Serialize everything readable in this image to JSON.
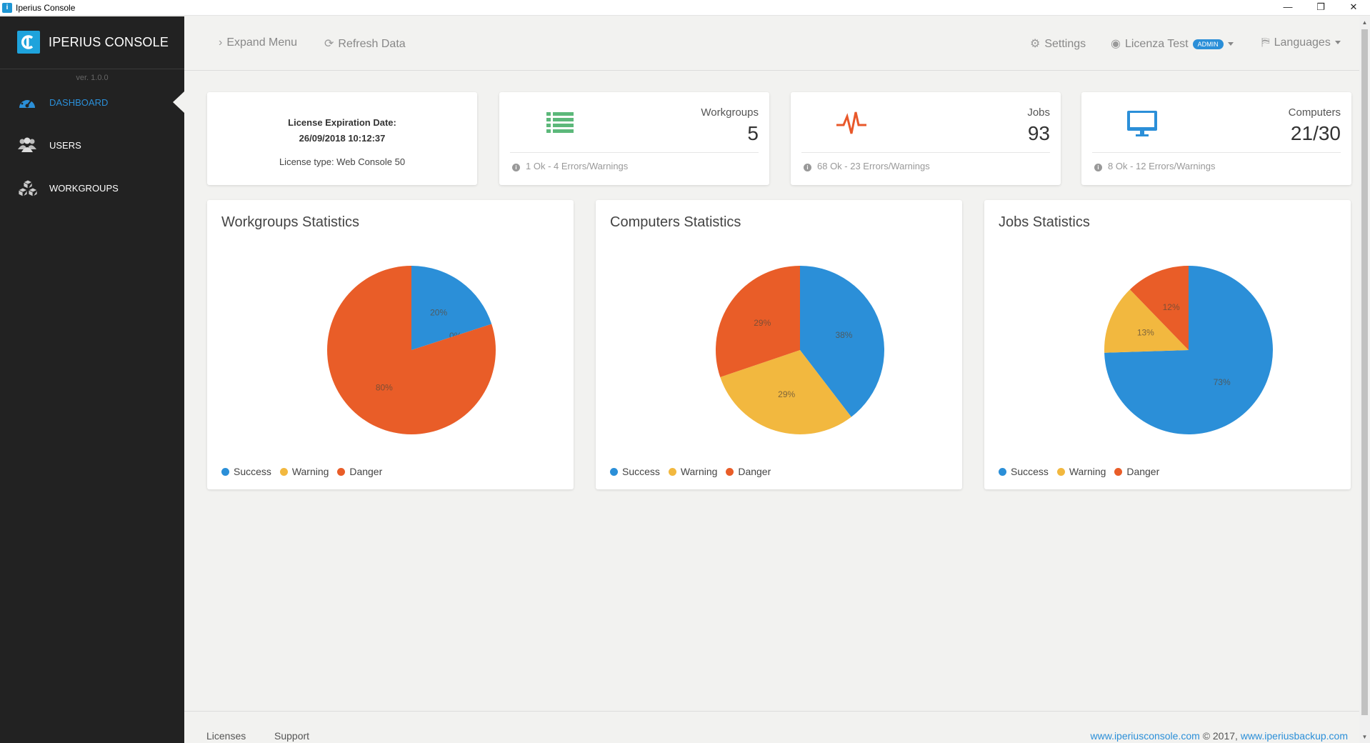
{
  "window": {
    "title": "Iperius Console",
    "minimize": "—",
    "restore": "❐",
    "close": "✕"
  },
  "sidebar": {
    "brand": "IPERIUS CONSOLE",
    "version": "ver. 1.0.0",
    "items": [
      {
        "label": "DASHBOARD",
        "icon": "dashboard-icon",
        "active": true
      },
      {
        "label": "USERS",
        "icon": "users-icon",
        "active": false
      },
      {
        "label": "WORKGROUPS",
        "icon": "workgroups-icon",
        "active": false
      }
    ]
  },
  "header": {
    "expand_menu": "Expand Menu",
    "refresh_data": "Refresh Data",
    "settings": "Settings",
    "user": "Licenza Test",
    "user_badge": "ADMIN",
    "languages": "Languages"
  },
  "license": {
    "expiration_label": "License Expiration Date:",
    "expiration_date": "26/09/2018 10:12:37",
    "type": "License type: Web Console 50"
  },
  "stats": [
    {
      "label": "Workgroups",
      "value": "5",
      "footer": "1 Ok - 4 Errors/Warnings",
      "icon": "list-icon",
      "color": "#5cb87a"
    },
    {
      "label": "Jobs",
      "value": "93",
      "footer": "68 Ok - 23 Errors/Warnings",
      "icon": "heartbeat-icon",
      "color": "#e8582a"
    },
    {
      "label": "Computers",
      "value": "21/30",
      "footer": "8 Ok - 12 Errors/Warnings",
      "icon": "monitor-icon",
      "color": "#2b8fd8"
    }
  ],
  "colors": {
    "success": "#2b8fd8",
    "warning": "#f2b83f",
    "danger": "#e95d28",
    "accent": "#2b8fd8"
  },
  "chart_data": [
    {
      "type": "pie",
      "title": "Workgroups Statistics",
      "categories": [
        "Success",
        "Warning",
        "Danger"
      ],
      "values": [
        20,
        0,
        80
      ],
      "labels": [
        "20%",
        "0%",
        "80%"
      ]
    },
    {
      "type": "pie",
      "title": "Computers Statistics",
      "categories": [
        "Success",
        "Warning",
        "Danger"
      ],
      "values": [
        38,
        29,
        29
      ],
      "labels": [
        "38%",
        "29%",
        "29%"
      ]
    },
    {
      "type": "pie",
      "title": "Jobs Statistics",
      "categories": [
        "Success",
        "Warning",
        "Danger"
      ],
      "values": [
        73,
        13,
        12
      ],
      "labels": [
        "73%",
        "13%",
        "12%"
      ]
    }
  ],
  "footer": {
    "licenses": "Licenses",
    "support": "Support",
    "site1": "www.iperiusconsole.com",
    "copyright": "© 2017,",
    "site2": "www.iperiusbackup.com"
  }
}
